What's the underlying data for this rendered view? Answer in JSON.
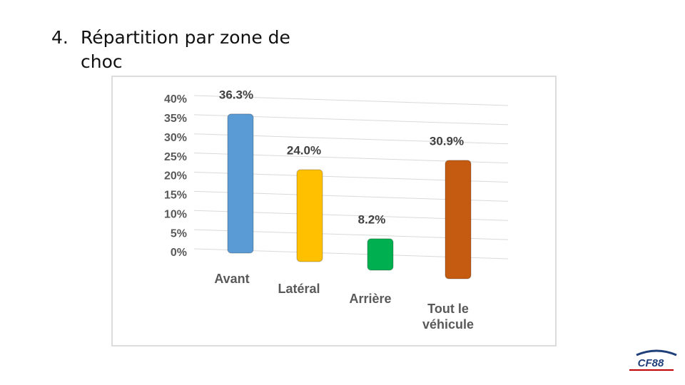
{
  "slide_number": "4.",
  "slide_title": "Répartition par zone de choc",
  "logo": "CF88",
  "chart_data": {
    "type": "bar",
    "categories": [
      "Avant",
      "Latéral",
      "Arrière",
      "Tout le véhicule"
    ],
    "values": [
      36.3,
      24.0,
      8.2,
      30.9
    ],
    "value_labels": [
      "36.3%",
      "24.0%",
      "8.2%",
      "30.9%"
    ],
    "colors": [
      "#5b9bd5",
      "#ffc000",
      "#00b050",
      "#c55a11"
    ],
    "ylim": [
      0,
      40
    ],
    "yticks": [
      {
        "value": 0,
        "label": "0%"
      },
      {
        "value": 5,
        "label": "5%"
      },
      {
        "value": 10,
        "label": "10%"
      },
      {
        "value": 15,
        "label": "15%"
      },
      {
        "value": 20,
        "label": "20%"
      },
      {
        "value": 25,
        "label": "25%"
      },
      {
        "value": 30,
        "label": "30%"
      },
      {
        "value": 35,
        "label": "35%"
      },
      {
        "value": 40,
        "label": "40%"
      }
    ],
    "grid": true
  }
}
